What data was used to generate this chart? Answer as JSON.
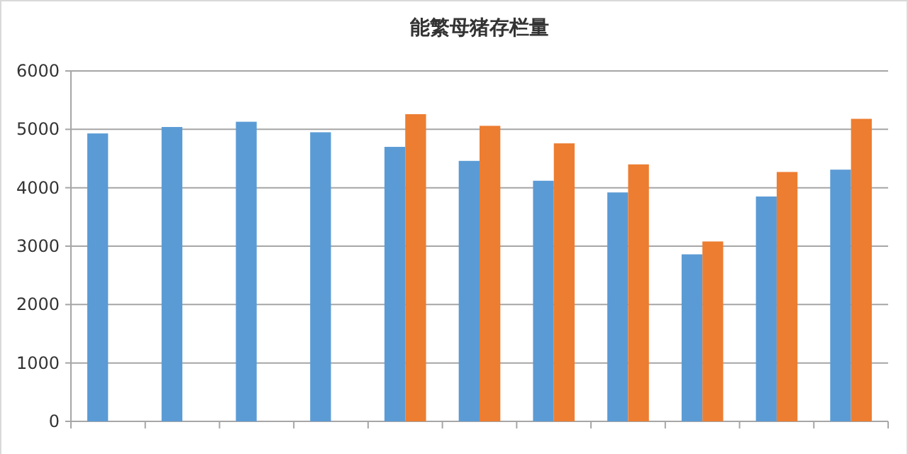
{
  "chart_data": {
    "type": "bar",
    "title": "能繁母猪存栏量",
    "categories": [
      null,
      null,
      null,
      null,
      null,
      null,
      null,
      null,
      null,
      null,
      null
    ],
    "series": [
      {
        "color": "#5b9bd5",
        "values": [
          4930,
          5040,
          5130,
          4950,
          4700,
          4460,
          4120,
          3920,
          2860,
          3850,
          4310
        ]
      },
      {
        "color": "#ed7d31",
        "values": [
          null,
          null,
          null,
          null,
          5260,
          5060,
          4760,
          4400,
          3080,
          4270,
          5180
        ]
      }
    ],
    "ylim": [
      0,
      6000
    ],
    "yticks": [
      0,
      1000,
      2000,
      3000,
      4000,
      5000,
      6000
    ],
    "grid": "y"
  }
}
